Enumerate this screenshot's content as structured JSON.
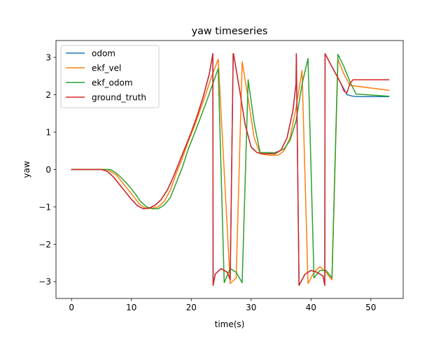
{
  "chart_data": {
    "type": "line",
    "title": "yaw timeseries",
    "xlabel": "time(s)",
    "ylabel": "yaw",
    "xlim": [
      -2.6,
      55.4
    ],
    "ylim": [
      -3.45,
      3.45
    ],
    "xticks": [
      0,
      10,
      20,
      30,
      40,
      50
    ],
    "yticks": [
      -3,
      -2,
      -1,
      0,
      1,
      2,
      3
    ],
    "xtick_labels": [
      "0",
      "10",
      "20",
      "30",
      "40",
      "50"
    ],
    "ytick_labels": [
      "−3",
      "−2",
      "−1",
      "0",
      "1",
      "2",
      "3"
    ],
    "grid": false,
    "legend_position": "top-left",
    "series": [
      {
        "name": "odom",
        "color": "#1f77b4",
        "x": [
          0,
          5,
          6,
          7,
          8,
          9,
          10,
          11,
          12,
          13,
          14,
          15,
          16,
          17,
          18,
          19,
          20,
          21,
          22,
          23,
          23.6,
          23.65,
          24,
          25,
          26,
          26.5,
          27,
          27.05,
          28,
          29,
          30,
          31,
          32,
          33,
          34,
          35,
          36,
          37,
          37.5,
          37.55,
          38,
          39,
          40,
          41,
          42,
          42.3,
          42.35,
          43,
          44,
          45,
          46,
          47,
          48,
          50,
          53
        ],
        "y": [
          0,
          0,
          -0.05,
          -0.2,
          -0.4,
          -0.6,
          -0.8,
          -0.97,
          -1.05,
          -1.03,
          -0.95,
          -0.8,
          -0.55,
          -0.2,
          0.2,
          0.6,
          1.0,
          1.45,
          1.95,
          2.55,
          3.1,
          -3.1,
          -2.8,
          -2.65,
          -2.75,
          -2.95,
          3.1,
          3.1,
          2.2,
          1.2,
          0.6,
          0.45,
          0.42,
          0.42,
          0.42,
          0.52,
          0.85,
          1.6,
          2.3,
          3.1,
          -3.1,
          -2.8,
          -2.7,
          -2.75,
          -2.85,
          -3.1,
          3.1,
          2.9,
          2.6,
          2.3,
          2.0,
          1.96,
          1.95,
          1.95,
          1.95
        ]
      },
      {
        "name": "ekf_vel",
        "color": "#ff7f0e",
        "x": [
          0,
          6,
          7.5,
          8.5,
          9.5,
          10.5,
          11.5,
          12.5,
          13.5,
          14.5,
          15.5,
          16.5,
          17.5,
          18.5,
          19.5,
          20.5,
          21.5,
          22.5,
          23.3,
          24.5,
          26.5,
          27.5,
          28.5,
          29.5,
          30.5,
          31.5,
          33,
          34.5,
          35.5,
          36.5,
          37.5,
          38.5,
          39.5,
          40.5,
          41.5,
          42.5,
          43.5,
          44.5,
          45.5,
          46.5,
          53
        ],
        "y": [
          0,
          0,
          -0.15,
          -0.35,
          -0.55,
          -0.75,
          -0.95,
          -1.05,
          -1.03,
          -1.0,
          -0.85,
          -0.55,
          -0.1,
          0.3,
          0.75,
          1.15,
          1.6,
          2.05,
          2.45,
          2.95,
          -3.05,
          -2.9,
          2.88,
          1.9,
          0.85,
          0.42,
          0.38,
          0.38,
          0.5,
          0.85,
          1.65,
          2.65,
          -3.05,
          -2.75,
          -2.6,
          -2.75,
          -2.95,
          2.95,
          2.55,
          2.25,
          2.12
        ]
      },
      {
        "name": "ekf_odom",
        "color": "#2ca02c",
        "x": [
          0,
          6.5,
          7.5,
          8.5,
          9.5,
          10.5,
          11.5,
          12.5,
          13.5,
          14.5,
          15.5,
          16.5,
          17.5,
          18.5,
          19.5,
          20.5,
          21.5,
          22.5,
          23.5,
          24.5,
          25.5,
          26.5,
          27.5,
          28.5,
          29.5,
          30.5,
          31.5,
          32.5,
          34,
          35.5,
          36.5,
          37.5,
          38.5,
          39.5,
          40.5,
          41.5,
          42.5,
          43.5,
          44.5,
          45.5,
          46.5,
          47.5,
          53
        ],
        "y": [
          0,
          0,
          -0.1,
          -0.25,
          -0.42,
          -0.62,
          -0.85,
          -1.0,
          -1.05,
          -1.05,
          -0.95,
          -0.75,
          -0.35,
          0.05,
          0.55,
          0.95,
          1.37,
          1.8,
          2.25,
          2.7,
          -3.03,
          -2.65,
          -2.75,
          -3.03,
          2.4,
          1.25,
          0.45,
          0.45,
          0.45,
          0.55,
          0.78,
          1.3,
          2.28,
          2.97,
          -2.9,
          -2.7,
          -2.7,
          -2.9,
          3.08,
          2.75,
          2.35,
          2.02,
          1.96
        ]
      },
      {
        "name": "ground_truth",
        "color": "#d62728",
        "x": [
          0,
          5,
          6,
          7,
          8,
          9,
          10,
          11,
          12,
          13,
          14,
          15,
          16,
          17,
          18,
          19,
          20,
          21,
          22,
          23,
          23.6,
          23.65,
          24,
          25,
          26,
          26.5,
          27,
          27.05,
          28,
          29,
          30,
          31,
          32,
          33,
          34,
          35,
          36,
          37,
          37.5,
          37.55,
          38,
          39,
          40,
          41,
          42,
          42.3,
          42.35,
          43,
          44,
          45,
          45.5,
          46,
          46.5,
          47,
          48,
          50,
          53
        ],
        "y": [
          0,
          0,
          -0.05,
          -0.2,
          -0.4,
          -0.6,
          -0.8,
          -0.97,
          -1.05,
          -1.03,
          -0.95,
          -0.8,
          -0.55,
          -0.2,
          0.2,
          0.6,
          1.0,
          1.45,
          1.95,
          2.55,
          3.1,
          -3.1,
          -2.8,
          -2.65,
          -2.75,
          -2.95,
          3.1,
          3.1,
          2.2,
          1.2,
          0.6,
          0.45,
          0.42,
          0.42,
          0.42,
          0.52,
          0.85,
          1.6,
          2.3,
          3.1,
          -3.1,
          -2.8,
          -2.7,
          -2.75,
          -2.85,
          -3.1,
          3.1,
          2.9,
          2.6,
          2.3,
          2.1,
          2.05,
          2.3,
          2.4,
          2.4,
          2.4,
          2.4
        ]
      }
    ]
  }
}
